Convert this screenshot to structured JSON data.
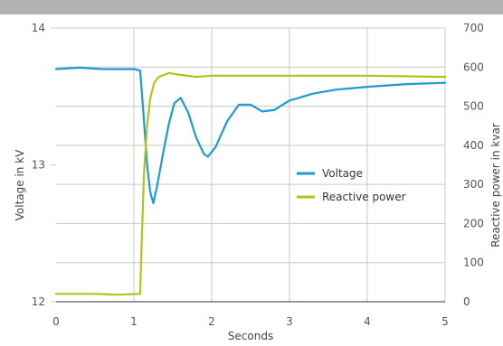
{
  "colors": {
    "top_bar": "#b3b3b3",
    "grid": "#c8c8c8",
    "axis": "#333333",
    "voltage": "#1e9ad6",
    "reactive_power": "#b5c21c"
  },
  "chart_data": {
    "type": "line",
    "xlabel": "Seconds",
    "ylabel_left": "Voltage in kV",
    "ylabel_right": "Reactive power in kvar",
    "xlim": [
      0,
      5
    ],
    "ylim_left": [
      12,
      14
    ],
    "ylim_right": [
      0,
      700
    ],
    "x_ticks": [
      "0",
      "1",
      "2",
      "3",
      "4",
      "5"
    ],
    "y_left_ticks": [
      "12",
      "13",
      "14"
    ],
    "y_right_ticks": [
      "0",
      "100",
      "200",
      "300",
      "400",
      "500",
      "600",
      "700"
    ],
    "grid": true,
    "legend_position": "center-right",
    "series": [
      {
        "name": "Voltage",
        "axis": "left",
        "color_key": "voltage",
        "points": [
          [
            0,
            13.7
          ],
          [
            0.3,
            13.71
          ],
          [
            0.6,
            13.7
          ],
          [
            1.0,
            13.7
          ],
          [
            1.08,
            13.69
          ],
          [
            1.12,
            13.4
          ],
          [
            1.17,
            13.0
          ],
          [
            1.21,
            12.8
          ],
          [
            1.25,
            12.72
          ],
          [
            1.3,
            12.85
          ],
          [
            1.38,
            13.1
          ],
          [
            1.45,
            13.3
          ],
          [
            1.52,
            13.45
          ],
          [
            1.6,
            13.49
          ],
          [
            1.7,
            13.38
          ],
          [
            1.8,
            13.2
          ],
          [
            1.9,
            13.08
          ],
          [
            1.95,
            13.06
          ],
          [
            2.05,
            13.13
          ],
          [
            2.2,
            13.32
          ],
          [
            2.35,
            13.44
          ],
          [
            2.5,
            13.44
          ],
          [
            2.65,
            13.39
          ],
          [
            2.8,
            13.4
          ],
          [
            3.0,
            13.47
          ],
          [
            3.3,
            13.52
          ],
          [
            3.6,
            13.55
          ],
          [
            4.0,
            13.57
          ],
          [
            4.5,
            13.59
          ],
          [
            5.0,
            13.6
          ]
        ]
      },
      {
        "name": "Reactive power",
        "axis": "right",
        "color_key": "reactive_power",
        "points": [
          [
            0,
            20
          ],
          [
            0.5,
            20
          ],
          [
            0.8,
            18
          ],
          [
            1.08,
            20
          ],
          [
            1.1,
            150
          ],
          [
            1.13,
            330
          ],
          [
            1.17,
            450
          ],
          [
            1.21,
            520
          ],
          [
            1.26,
            560
          ],
          [
            1.32,
            575
          ],
          [
            1.45,
            585
          ],
          [
            1.6,
            580
          ],
          [
            1.8,
            575
          ],
          [
            2.0,
            578
          ],
          [
            3.0,
            578
          ],
          [
            4.0,
            578
          ],
          [
            5.0,
            575
          ]
        ]
      }
    ]
  }
}
